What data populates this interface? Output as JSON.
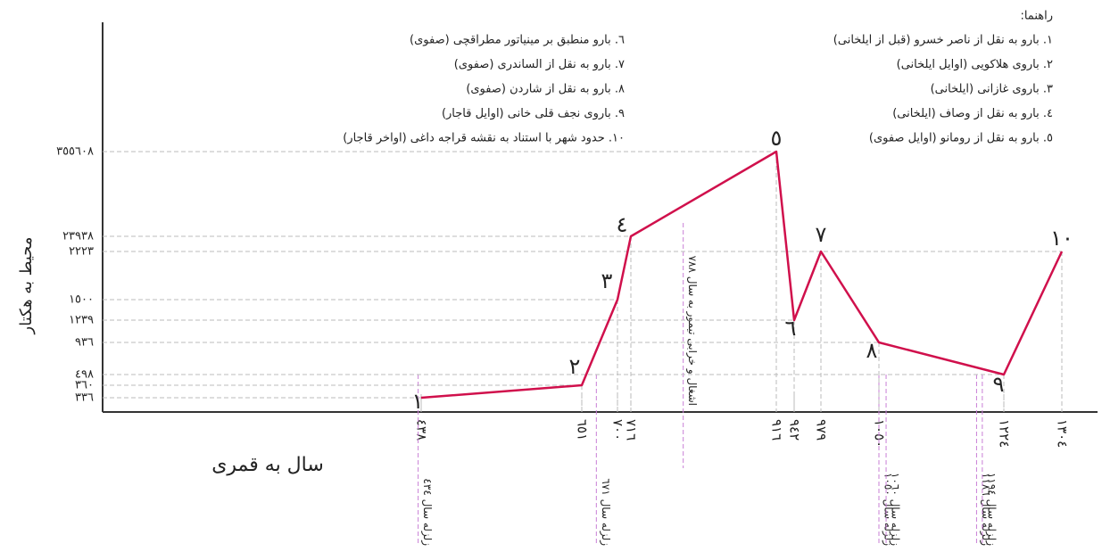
{
  "chart_data": {
    "type": "line",
    "legend_title": "راهنما:",
    "legend": [
      "۱. بارو به نقل از ناصر خسرو (قبل از ایلخانی)",
      "۲. باروی هلاکویی (اوایل ایلخانی)",
      "۳. باروی غازانی (ایلخانی)",
      "٤. بارو به نقل از وصاف (ایلخانی)",
      "٥. بارو به نقل از رومانو (اوایل صفوی)",
      "٦. بارو منطبق بر مینیاتور مطراقچی (صفوی)",
      "۷. بارو به نقل از الساندری (صفوی)",
      "۸. بارو به نقل از شاردن (صفوی)",
      "۹. باروی نجف قلی خانی (اوایل قاجار)",
      "۱۰. حدود شهر با استناد به نقشه قراجه داغی (اواخر قاجار)"
    ],
    "ylabel": "محیط به هکتار",
    "xlabel": "سال به قمری",
    "color": "#d0104c",
    "x": [
      438,
      651,
      700,
      716,
      916,
      942,
      979,
      1050,
      1224,
      1304
    ],
    "values": [
      336,
      360,
      1500,
      23938,
      355608,
      1239,
      2223,
      936,
      498,
      2223
    ],
    "point_labels": [
      "۱",
      "۲",
      "۳",
      "٤",
      "٥",
      "٦",
      "۷",
      "۸",
      "۹",
      "۱۰"
    ],
    "xticks": [
      {
        "value": 438,
        "label": "٤۳۸"
      },
      {
        "value": 651,
        "label": "٦٥۱"
      },
      {
        "value": 700,
        "label": "۷۰۰"
      },
      {
        "value": 716,
        "label": "۷۱٦"
      },
      {
        "value": 916,
        "label": "۹۱٦"
      },
      {
        "value": 942,
        "label": "۹٤۲"
      },
      {
        "value": 979,
        "label": "۹۷۹"
      },
      {
        "value": 1050,
        "label": "۱۰٥۰"
      },
      {
        "value": 1224,
        "label": "۱۲۲٤"
      },
      {
        "value": 1304,
        "label": "۱۳۰٤"
      }
    ],
    "yticks": [
      {
        "value": 336,
        "label": "۳۳٦"
      },
      {
        "value": 360,
        "label": "۳٦۰"
      },
      {
        "value": 498,
        "label": "٤۹۸"
      },
      {
        "value": 936,
        "label": "۹۳٦"
      },
      {
        "value": 1239,
        "label": "۱۲۳۹"
      },
      {
        "value": 1500,
        "label": "۱٥۰۰"
      },
      {
        "value": 2223,
        "label": "۲۲۲۳"
      },
      {
        "value": 23938,
        "label": "۲۳۹۳۸"
      },
      {
        "value": 355608,
        "label": "۳٥٥٦۰۸"
      }
    ],
    "annotations": [
      {
        "x": 434,
        "text": "زلزله سال ٤۳٤"
      },
      {
        "x": 671,
        "text": "زلزله سال ٦۷۱"
      },
      {
        "x": 788,
        "text": "اشغال و خرابی تیمور به سال ۷۸۸"
      },
      {
        "x": 1050,
        "text": "زلزله سال ۱۰٥۰"
      },
      {
        "x": 1060,
        "text": "زلزله سال ۱۰٦۰"
      },
      {
        "x": 1186,
        "text": "زلزله سال ۱۱۸٦"
      },
      {
        "x": 1194,
        "text": "زلزله سال ۱۱۹٤"
      }
    ]
  }
}
